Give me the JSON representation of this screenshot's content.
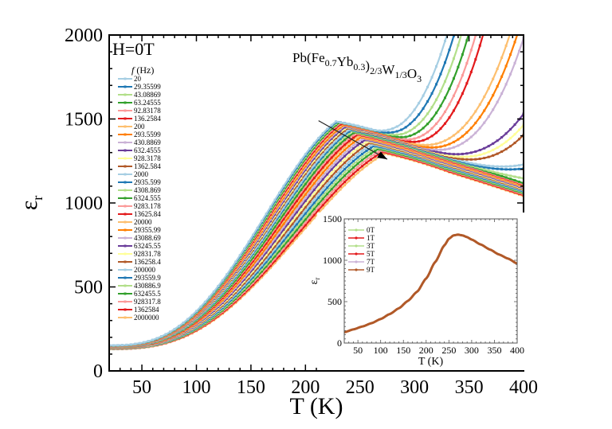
{
  "chart_data": [
    {
      "type": "line",
      "title": "",
      "annotation_field": "H=0T",
      "annotation_compound": {
        "parts": [
          {
            "t": "Pb(Fe",
            "sub": false
          },
          {
            "t": "0.7",
            "sub": true
          },
          {
            "t": "Yb",
            "sub": false
          },
          {
            "t": "0.3",
            "sub": true
          },
          {
            "t": ")",
            "sub": false
          },
          {
            "t": "2/3",
            "sub": true
          },
          {
            "t": "W",
            "sub": false
          },
          {
            "t": "1/3",
            "sub": true
          },
          {
            "t": "O",
            "sub": false
          },
          {
            "t": "3",
            "sub": true
          }
        ]
      },
      "xlabel": "T (K)",
      "ylabel": "ε",
      "ylabel_sub": "r",
      "xlim": [
        20,
        400
      ],
      "ylim": [
        0,
        2000
      ],
      "xticks": [
        50,
        100,
        150,
        200,
        250,
        300,
        350,
        400
      ],
      "yticks": [
        0,
        500,
        1000,
        1500,
        2000
      ],
      "legend_title": "f (Hz)",
      "legend_title_italic_part": "f",
      "legend_title_rest": " (Hz)",
      "legend_position": "top-left",
      "arrow_annotation": {
        "from": [
          212,
          1490
        ],
        "to": [
          275,
          1260
        ],
        "meaning": "increasing frequency"
      },
      "start_value_range_at_20K": [
        130,
        155
      ],
      "series": [
        {
          "name": "20",
          "color": "#a6cee3",
          "peak_T": 228,
          "peak_value": 1485,
          "high_T_rise": "steep"
        },
        {
          "name": "29.35599",
          "color": "#1f78b4",
          "peak_T": 229,
          "peak_value": 1484,
          "high_T_rise": "steep"
        },
        {
          "name": "43.08869",
          "color": "#b2df8a",
          "peak_T": 230,
          "peak_value": 1482,
          "high_T_rise": "steep"
        },
        {
          "name": "63.24555",
          "color": "#33a02c",
          "peak_T": 231,
          "peak_value": 1479,
          "high_T_rise": "steep"
        },
        {
          "name": "92.83178",
          "color": "#fb9a99",
          "peak_T": 232,
          "peak_value": 1476,
          "high_T_rise": "steep"
        },
        {
          "name": "136.2584",
          "color": "#e31a1c",
          "peak_T": 233,
          "peak_value": 1472,
          "high_T_rise": "steep"
        },
        {
          "name": "200",
          "color": "#fdbf6f",
          "peak_T": 234,
          "peak_value": 1468,
          "high_T_rise": "strong"
        },
        {
          "name": "293.5599",
          "color": "#ff7f00",
          "peak_T": 235,
          "peak_value": 1464,
          "high_T_rise": "strong"
        },
        {
          "name": "430.8869",
          "color": "#cab2d6",
          "peak_T": 236,
          "peak_value": 1460,
          "high_T_rise": "strong"
        },
        {
          "name": "632.4555",
          "color": "#6a3d9a",
          "peak_T": 237,
          "peak_value": 1455,
          "high_T_rise": "moderate"
        },
        {
          "name": "928.3178",
          "color": "#ffff99",
          "peak_T": 238,
          "peak_value": 1450,
          "high_T_rise": "moderate"
        },
        {
          "name": "1362.584",
          "color": "#b15928",
          "peak_T": 239,
          "peak_value": 1445,
          "high_T_rise": "moderate"
        },
        {
          "name": "2000",
          "color": "#a6cee3",
          "peak_T": 241,
          "peak_value": 1440,
          "high_T_rise": "weak"
        },
        {
          "name": "2935.599",
          "color": "#1f78b4",
          "peak_T": 242,
          "peak_value": 1434,
          "high_T_rise": "weak"
        },
        {
          "name": "4308.869",
          "color": "#b2df8a",
          "peak_T": 243,
          "peak_value": 1428,
          "high_T_rise": "slight"
        },
        {
          "name": "6324.555",
          "color": "#33a02c",
          "peak_T": 245,
          "peak_value": 1421,
          "high_T_rise": "none"
        },
        {
          "name": "9283.178",
          "color": "#fb9a99",
          "peak_T": 246,
          "peak_value": 1414,
          "high_T_rise": "none"
        },
        {
          "name": "13625.84",
          "color": "#e31a1c",
          "peak_T": 248,
          "peak_value": 1407,
          "high_T_rise": "none"
        },
        {
          "name": "20000",
          "color": "#fdbf6f",
          "peak_T": 249,
          "peak_value": 1400,
          "high_T_rise": "none"
        },
        {
          "name": "29355.99",
          "color": "#ff7f00",
          "peak_T": 251,
          "peak_value": 1392,
          "high_T_rise": "none"
        },
        {
          "name": "43088.69",
          "color": "#cab2d6",
          "peak_T": 253,
          "peak_value": 1384,
          "high_T_rise": "none"
        },
        {
          "name": "63245.55",
          "color": "#6a3d9a",
          "peak_T": 255,
          "peak_value": 1376,
          "high_T_rise": "none"
        },
        {
          "name": "92831.78",
          "color": "#ffff99",
          "peak_T": 257,
          "peak_value": 1367,
          "high_T_rise": "none"
        },
        {
          "name": "136258.4",
          "color": "#b15928",
          "peak_T": 259,
          "peak_value": 1358,
          "high_T_rise": "none"
        },
        {
          "name": "200000",
          "color": "#a6cee3",
          "peak_T": 261,
          "peak_value": 1349,
          "high_T_rise": "none"
        },
        {
          "name": "293559.9",
          "color": "#1f78b4",
          "peak_T": 263,
          "peak_value": 1340,
          "high_T_rise": "none"
        },
        {
          "name": "430886.9",
          "color": "#b2df8a",
          "peak_T": 265,
          "peak_value": 1331,
          "high_T_rise": "none"
        },
        {
          "name": "632455.5",
          "color": "#33a02c",
          "peak_T": 267,
          "peak_value": 1322,
          "high_T_rise": "none"
        },
        {
          "name": "928317.8",
          "color": "#fb9a99",
          "peak_T": 269,
          "peak_value": 1313,
          "high_T_rise": "none"
        },
        {
          "name": "1362584",
          "color": "#e31a1c",
          "peak_T": 271,
          "peak_value": 1304,
          "high_T_rise": "none"
        },
        {
          "name": "2000000",
          "color": "#fdbf6f",
          "peak_T": 273,
          "peak_value": 1295,
          "high_T_rise": "none"
        }
      ]
    },
    {
      "type": "line",
      "title": "",
      "inset": true,
      "xlabel": "T (K)",
      "ylabel": "ε",
      "ylabel_sub": "r",
      "xlim": [
        20,
        400
      ],
      "ylim": [
        0,
        1500
      ],
      "xticks": [
        50,
        100,
        150,
        200,
        250,
        300,
        350,
        400
      ],
      "yticks": [
        0,
        500,
        1000,
        1500
      ],
      "legend_position": "top-left",
      "x": [
        20,
        40,
        60,
        80,
        100,
        120,
        140,
        160,
        180,
        200,
        220,
        240,
        250,
        260,
        270,
        280,
        290,
        300,
        320,
        340,
        360,
        380,
        400
      ],
      "series": [
        {
          "name": "0T",
          "color": "#b2df8a"
        },
        {
          "name": "1T",
          "color": "#e31a1c"
        },
        {
          "name": "3T",
          "color": "#b2df8a"
        },
        {
          "name": "5T",
          "color": "#e31a1c"
        },
        {
          "name": "7T",
          "color": "#cab2d6"
        },
        {
          "name": "9T",
          "color": "#b15928"
        }
      ],
      "shared_values": [
        130,
        165,
        200,
        240,
        290,
        350,
        420,
        510,
        620,
        780,
        980,
        1180,
        1260,
        1300,
        1310,
        1300,
        1280,
        1250,
        1190,
        1130,
        1070,
        1020,
        960
      ]
    }
  ]
}
